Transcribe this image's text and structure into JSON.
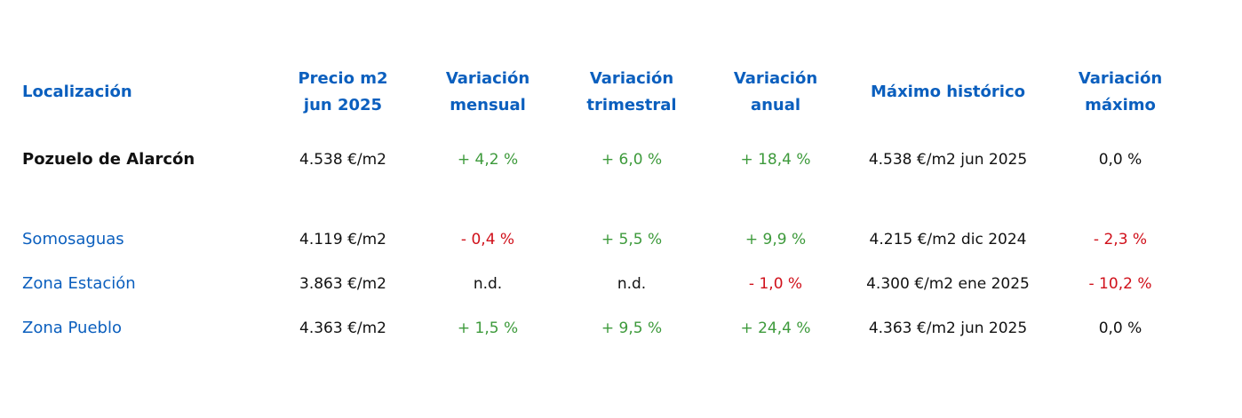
{
  "colors": {
    "header": "#0b5fbe",
    "positive": "#3d9a3b",
    "negative": "#d0101a",
    "neutral": "#111111"
  },
  "headers": {
    "location": "Localización",
    "price_line1": "Precio m2",
    "price_line2": "jun 2025",
    "monthly_line1": "Variación",
    "monthly_line2": "mensual",
    "quarterly_line1": "Variación",
    "quarterly_line2": "trimestral",
    "annual_line1": "Variación",
    "annual_line2": "anual",
    "max_hist": "Máximo histórico",
    "var_max_line1": "Variación",
    "var_max_line2": "máximo"
  },
  "rows": [
    {
      "location": "Pozuelo de Alarcón",
      "price": "4.538 €/m2",
      "monthly": "+ 4,2 %",
      "quarterly": "+ 6,0 %",
      "annual": "+ 18,4 %",
      "max_hist": "4.538 €/m2 jun 2025",
      "var_max": "0,0 %"
    },
    {
      "location": "Somosaguas",
      "price": "4.119 €/m2",
      "monthly": "- 0,4 %",
      "quarterly": "+ 5,5 %",
      "annual": "+ 9,9 %",
      "max_hist": "4.215 €/m2 dic 2024",
      "var_max": "- 2,3 %"
    },
    {
      "location": "Zona Estación",
      "price": "3.863 €/m2",
      "monthly": "n.d.",
      "quarterly": "n.d.",
      "annual": "- 1,0 %",
      "max_hist": "4.300 €/m2 ene 2025",
      "var_max": "- 10,2 %"
    },
    {
      "location": "Zona Pueblo",
      "price": "4.363 €/m2",
      "monthly": "+ 1,5 %",
      "quarterly": "+ 9,5 %",
      "annual": "+ 24,4 %",
      "max_hist": "4.363 €/m2 jun 2025",
      "var_max": "0,0 %"
    }
  ]
}
